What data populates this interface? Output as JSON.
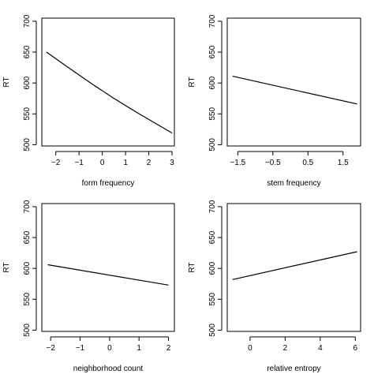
{
  "chart_data": [
    {
      "type": "line",
      "xlabel": "form frequency",
      "ylabel": "RT",
      "xlim": [
        -2.6,
        3.1
      ],
      "ylim": [
        498,
        705
      ],
      "x_ticks": [
        -2,
        -1,
        0,
        1,
        2,
        3
      ],
      "x_tick_labels": [
        "−2",
        "−1",
        "0",
        "1",
        "2",
        "3"
      ],
      "y_ticks": [
        500,
        550,
        600,
        650,
        700
      ],
      "y_tick_labels": [
        "500",
        "550",
        "600",
        "650",
        "700"
      ],
      "series": [
        {
          "x": [
            -2.4,
            -1.5,
            -0.5,
            0.5,
            1.5,
            3.0
          ],
          "y": [
            650,
            626,
            600,
            575,
            552,
            519
          ]
        }
      ]
    },
    {
      "type": "line",
      "xlabel": "stem frequency",
      "ylabel": "RT",
      "xlim": [
        -1.8,
        2.0
      ],
      "ylim": [
        498,
        705
      ],
      "x_ticks": [
        -1.5,
        -0.5,
        0.5,
        1.5
      ],
      "x_tick_labels": [
        "−1.5",
        "−0.5",
        "0.5",
        "1.5"
      ],
      "y_ticks": [
        500,
        550,
        600,
        650,
        700
      ],
      "y_tick_labels": [
        "500",
        "550",
        "600",
        "650",
        "700"
      ],
      "series": [
        {
          "x": [
            -1.65,
            1.9
          ],
          "y": [
            611,
            566
          ]
        }
      ]
    },
    {
      "type": "line",
      "xlabel": "neighborhood count",
      "ylabel": "RT",
      "xlim": [
        -2.3,
        2.2
      ],
      "ylim": [
        498,
        705
      ],
      "x_ticks": [
        -2,
        -1,
        0,
        1,
        2
      ],
      "x_tick_labels": [
        "−2",
        "−1",
        "0",
        "1",
        "2"
      ],
      "y_ticks": [
        500,
        550,
        600,
        650,
        700
      ],
      "y_tick_labels": [
        "500",
        "550",
        "600",
        "650",
        "700"
      ],
      "series": [
        {
          "x": [
            -2.1,
            2.0
          ],
          "y": [
            606,
            573
          ]
        }
      ]
    },
    {
      "type": "line",
      "xlabel": "relative entropy",
      "ylabel": "RT",
      "xlim": [
        -1.3,
        6.3
      ],
      "ylim": [
        498,
        705
      ],
      "x_ticks": [
        0,
        2,
        4,
        6
      ],
      "x_tick_labels": [
        "0",
        "2",
        "4",
        "6"
      ],
      "y_ticks": [
        500,
        550,
        600,
        650,
        700
      ],
      "y_tick_labels": [
        "500",
        "550",
        "600",
        "650",
        "700"
      ],
      "series": [
        {
          "x": [
            -1.0,
            6.1
          ],
          "y": [
            582,
            627
          ]
        }
      ]
    }
  ]
}
